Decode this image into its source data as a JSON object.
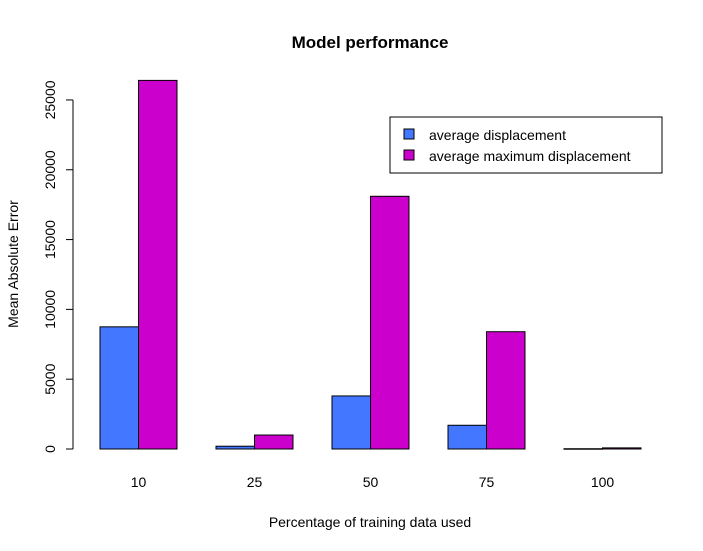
{
  "chart_data": {
    "type": "bar",
    "title": "Model performance",
    "xlabel": "Percentage of training data used",
    "ylabel": "Mean Absolute Error",
    "categories": [
      "10",
      "25",
      "50",
      "75",
      "100"
    ],
    "ylim": [
      0,
      26500
    ],
    "yticks": [
      0,
      5000,
      10000,
      15000,
      20000,
      25000
    ],
    "grid": false,
    "legend_position": "top-right",
    "series": [
      {
        "name": "average displacement",
        "color": "#4477ff",
        "values": [
          8750,
          200,
          3800,
          1700,
          20
        ]
      },
      {
        "name": "average maximum displacement",
        "color": "#cc00cc",
        "values": [
          26400,
          1000,
          18100,
          8400,
          80
        ]
      }
    ]
  }
}
